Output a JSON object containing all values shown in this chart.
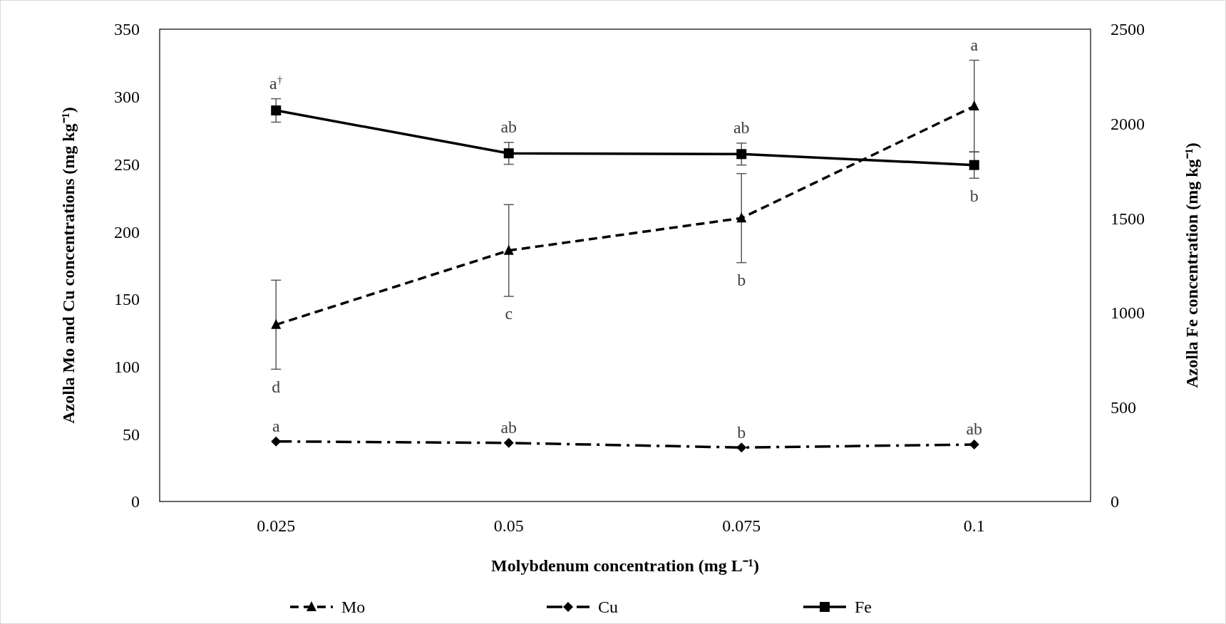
{
  "chart_data": {
    "type": "line",
    "xlabel": "Molybdenum concentration (mg L⁻¹)",
    "ylabel": "Azolla Mo and Cu concentrations (mg kg⁻¹)",
    "y2label": "Azolla Fe concentration (mg kg⁻¹)",
    "categories": [
      "0.025",
      "0.05",
      "0.075",
      "0.1"
    ],
    "ylim": [
      0,
      350
    ],
    "yticks": [
      0,
      50,
      100,
      150,
      200,
      250,
      300,
      350
    ],
    "y2lim": [
      0,
      2500
    ],
    "y2ticks": [
      0,
      500,
      1000,
      1500,
      2000,
      2500
    ],
    "series": [
      {
        "name": "Mo",
        "color": "#000000",
        "values": [
          131,
          186,
          210,
          293
        ],
        "errors": [
          33,
          34,
          33,
          34
        ],
        "value_labels": [
          "d",
          "c",
          "b",
          "a"
        ],
        "marker": "triangle",
        "line_style": "dashed"
      },
      {
        "name": "Cu",
        "color": "#000000",
        "values": [
          44.5,
          43.4,
          40,
          42.2
        ],
        "value_labels": [
          "a",
          "ab",
          "b",
          "ab"
        ],
        "marker": "diamond",
        "line_style": "dashdot"
      },
      {
        "name": "Fe",
        "color": "#000000",
        "values": [
          2070,
          1843,
          1839,
          1781
        ],
        "errors": [
          62,
          58,
          58,
          70
        ],
        "value_labels": [
          "a$^{†}$",
          "ab",
          "ab",
          "b"
        ],
        "marker": "square",
        "line_style": "solid",
        "axis": "y2"
      }
    ],
    "grid": false,
    "legend": "bottom"
  }
}
